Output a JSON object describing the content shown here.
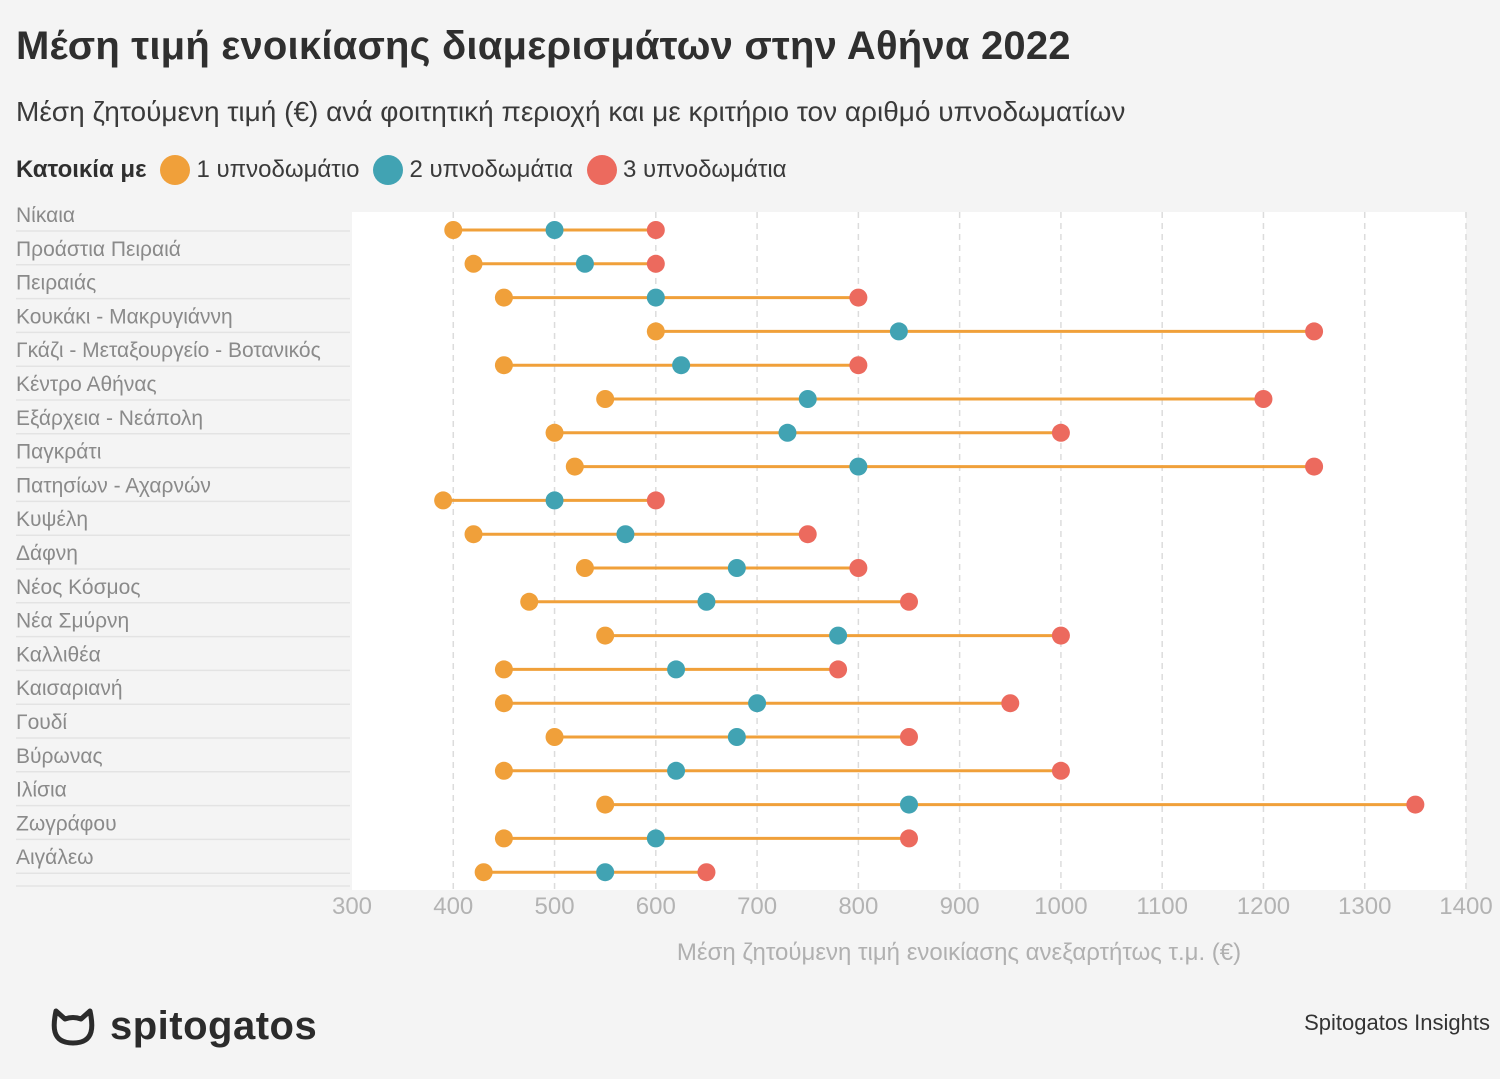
{
  "title": "Μέση τιμή ενοικίασης διαμερισμάτων στην Αθήνα 2022",
  "subtitle": "Μέση ζητούμενη τιμή (€) ανά φοιτητική περιοχή και με κριτήριο τον αριθμό υπνοδωματίων",
  "legend": {
    "title": "Κατοικία με",
    "items": [
      {
        "label": "1 υπνοδωμάτιο",
        "color": "#f0a03a"
      },
      {
        "label": "2 υπνοδωμάτια",
        "color": "#41a3b3"
      },
      {
        "label": "3 υπνοδωμάτια",
        "color": "#ec6a5e"
      }
    ]
  },
  "brand": {
    "name": "spitogatos",
    "icon": "cat-logo-icon"
  },
  "credit": "Spitogatos Insights",
  "chart_data": {
    "type": "dumbbell",
    "xlabel": "Μέση ζητούμενη τιμή ενοικίασης ανεξαρτήτως τ.μ. (€)",
    "xlim": [
      300,
      1400
    ],
    "xticks": [
      300,
      400,
      500,
      600,
      700,
      800,
      900,
      1000,
      1100,
      1200,
      1300,
      1400
    ],
    "grid": true,
    "legend_position": "top-left",
    "connector_color": "#f0a03a",
    "series": [
      {
        "name": "1 υπνοδωμάτιο",
        "color": "#f0a03a"
      },
      {
        "name": "2 υπνοδωμάτια",
        "color": "#41a3b3"
      },
      {
        "name": "3 υπνοδωμάτια",
        "color": "#ec6a5e"
      }
    ],
    "categories": [
      "Νίκαια",
      "Προάστια Πειραιά",
      "Πειραιάς",
      "Κουκάκι - Μακρυγιάννη",
      "Γκάζι - Μεταξουργείο - Βοτανικός",
      "Κέντρο Αθήνας",
      "Εξάρχεια - Νεάπολη",
      "Παγκράτι",
      "Πατησίων - Αχαρνών",
      "Κυψέλη",
      "Δάφνη",
      "Νέος Κόσμος",
      "Νέα Σμύρνη",
      "Καλλιθέα",
      "Καισαριανή",
      "Γουδί",
      "Βύρωνας",
      "Ιλίσια",
      "Ζωγράφου",
      "Αιγάλεω"
    ],
    "values": [
      [
        400,
        500,
        600
      ],
      [
        420,
        530,
        600
      ],
      [
        450,
        600,
        800
      ],
      [
        600,
        840,
        1250
      ],
      [
        450,
        625,
        800
      ],
      [
        550,
        750,
        1200
      ],
      [
        500,
        730,
        1000
      ],
      [
        520,
        800,
        1250
      ],
      [
        390,
        500,
        600
      ],
      [
        420,
        570,
        750
      ],
      [
        530,
        680,
        800
      ],
      [
        475,
        650,
        850
      ],
      [
        550,
        780,
        1000
      ],
      [
        450,
        620,
        780
      ],
      [
        450,
        700,
        950
      ],
      [
        500,
        680,
        850
      ],
      [
        450,
        620,
        1000
      ],
      [
        550,
        850,
        1350
      ],
      [
        450,
        600,
        850
      ],
      [
        430,
        550,
        650
      ]
    ]
  }
}
